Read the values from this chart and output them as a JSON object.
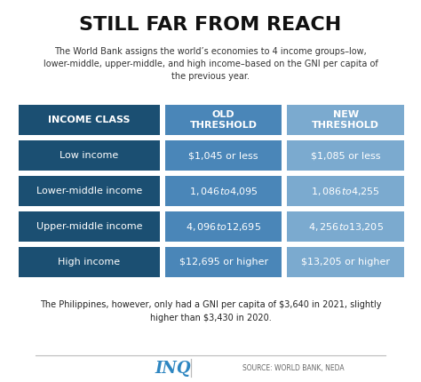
{
  "title": "STILL FAR FROM REACH",
  "subtitle": "The World Bank assigns the world’s economies to 4 income groups–low,\nlower-middle, upper-middle, and high income–based on the GNI per capita of\nthe previous year.",
  "footer": "The Philippines, however, only had a GNI per capita of $3,640 in 2021, slightly\nhigher than $3,430 in 2020.",
  "source": "SOURCE: WORLD BANK, NEDA",
  "logo": "INQ",
  "header_col1": "INCOME CLASS",
  "header_col2": "OLD\nTHRESHOLD",
  "header_col3": "NEW\nTHRESHOLD",
  "rows": [
    [
      "Low income",
      "$1,045 or less",
      "$1,085 or less"
    ],
    [
      "Lower-middle income",
      "$1,046 to $4,095",
      "$1,086 to $4,255"
    ],
    [
      "Upper-middle income",
      "$4,096 to $12,695",
      "$4,256 to $13,205"
    ],
    [
      "High income",
      "$12,695 or higher",
      "$13,205 or higher"
    ]
  ],
  "col1_dark": "#1B4F72",
  "col2_mid": "#4A86B8",
  "col3_light": "#7BAACF",
  "header_col1_color": "#1B4F72",
  "header_col2_color": "#4A86B8",
  "header_col3_color": "#7BAACF",
  "bg_color": "#ffffff",
  "text_white": "#ffffff",
  "text_dark": "#333333",
  "separator_color": "#bbbbbb",
  "logo_color": "#2E86C1",
  "source_color": "#666666"
}
